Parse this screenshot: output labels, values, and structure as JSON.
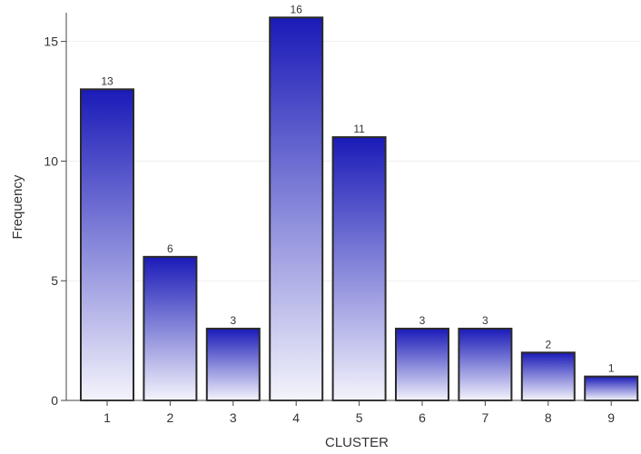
{
  "chart_data": {
    "type": "bar",
    "title": "",
    "xlabel": "CLUSTER",
    "ylabel": "Frequency",
    "categories": [
      "1",
      "2",
      "3",
      "4",
      "5",
      "6",
      "7",
      "8",
      "9"
    ],
    "values": [
      13,
      6,
      3,
      16,
      11,
      3,
      3,
      2,
      1
    ],
    "data_labels": [
      "13",
      "6",
      "3",
      "16",
      "11",
      "3",
      "3",
      "2",
      "1"
    ],
    "ylim": [
      0,
      16.2
    ],
    "yticks": [
      0,
      5,
      10,
      15
    ],
    "ytick_labels": [
      "0",
      "5",
      "10",
      "15"
    ],
    "grid": true,
    "legend": "none",
    "colors": {
      "bar_top": "#1a1ab8",
      "bar_bottom": "#f4f4fc",
      "bar_outline": "#2a2a2a",
      "gridline": "#eeeeee",
      "axis": "#444444"
    }
  }
}
